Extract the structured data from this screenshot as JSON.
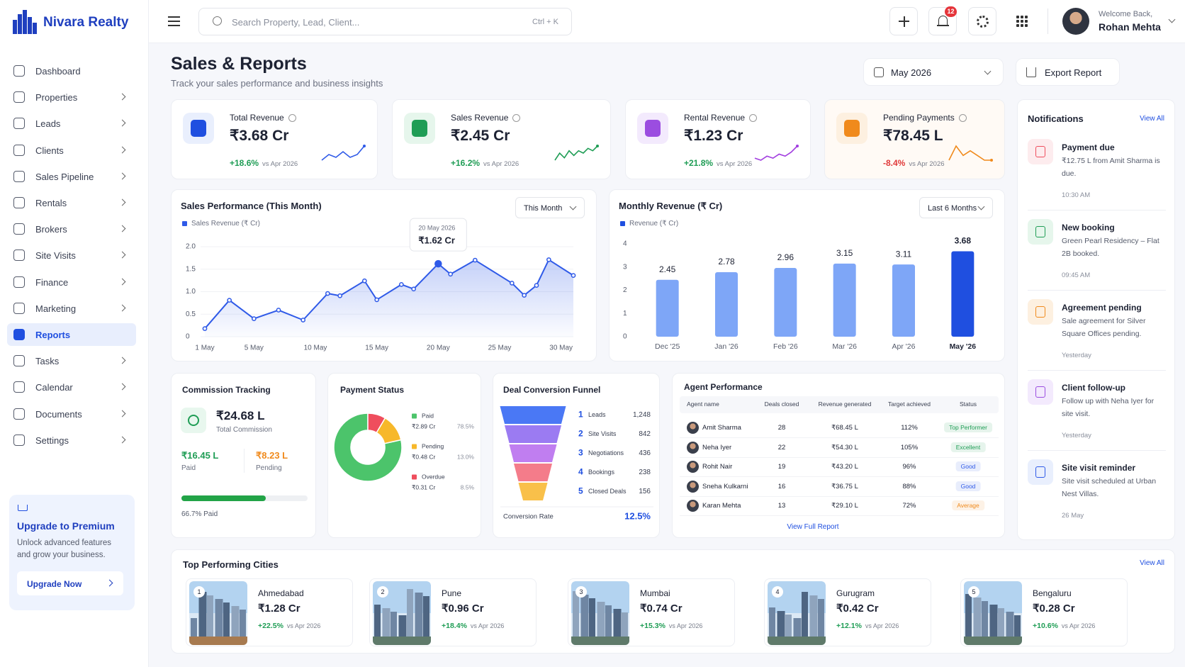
{
  "brand": "Nivara Realty",
  "search": {
    "placeholder": "Search Property, Lead, Client...",
    "shortcut": "Ctrl + K"
  },
  "notification_count": 12,
  "user": {
    "greeting": "Welcome Back,",
    "name": "Rohan Mehta"
  },
  "nav": [
    {
      "label": "Dashboard"
    },
    {
      "label": "Properties",
      "submenu": true
    },
    {
      "label": "Leads",
      "submenu": true
    },
    {
      "label": "Clients",
      "submenu": true
    },
    {
      "label": "Sales Pipeline",
      "submenu": true
    },
    {
      "label": "Rentals",
      "submenu": true
    },
    {
      "label": "Brokers",
      "submenu": true
    },
    {
      "label": "Site Visits",
      "submenu": true
    },
    {
      "label": "Finance",
      "submenu": true
    },
    {
      "label": "Marketing",
      "submenu": true
    },
    {
      "label": "Reports",
      "active": true
    },
    {
      "label": "Tasks",
      "submenu": true
    },
    {
      "label": "Calendar",
      "submenu": true
    },
    {
      "label": "Documents",
      "submenu": true
    },
    {
      "label": "Settings",
      "submenu": true
    }
  ],
  "upgrade": {
    "title": "Upgrade to Premium",
    "text": "Unlock advanced features and grow your business.",
    "button": "Upgrade Now"
  },
  "page": {
    "title": "Sales & Reports",
    "subtitle": "Track your sales performance and business insights",
    "period": "May 2026",
    "export": "Export Report"
  },
  "kpis": [
    {
      "label": "Total Revenue",
      "value": "₹3.68 Cr",
      "change": "+18.6%",
      "compare": "vs Apr 2026",
      "color": "#1f4fe0",
      "icon_bg": "#e9effd",
      "change_color": "#1f9d55",
      "trend_color": "#2f5ae8",
      "trend": [
        3,
        5,
        4,
        6,
        4,
        5,
        8
      ]
    },
    {
      "label": "Sales Revenue",
      "value": "₹2.45 Cr",
      "change": "+16.2%",
      "compare": "vs Apr 2026",
      "color": "#1f9d55",
      "icon_bg": "#e6f6ec",
      "change_color": "#1f9d55",
      "trend_color": "#1f9d55",
      "trend": [
        2,
        5,
        3,
        6,
        4,
        6,
        5,
        7,
        6,
        8
      ]
    },
    {
      "label": "Rental Revenue",
      "value": "₹1.23 Cr",
      "change": "+21.8%",
      "compare": "vs Apr 2026",
      "color": "#9b4de0",
      "icon_bg": "#f3eafd",
      "change_color": "#1f9d55",
      "trend_color": "#a23ee0",
      "trend": [
        3,
        2,
        4,
        3,
        5,
        4,
        6,
        9
      ]
    },
    {
      "label": "Pending Payments",
      "value": "₹78.45 L",
      "change": "-8.4%",
      "compare": "vs Apr 2026",
      "color": "#f08a1c",
      "icon_bg": "#fdf0e0",
      "change_color": "#e03a3a",
      "trend_color": "#f08a1c",
      "trend": [
        3,
        6,
        4,
        5,
        4,
        3,
        3
      ],
      "card_bg": "#fffaf5"
    }
  ],
  "sales_performance": {
    "type": "line",
    "title": "Sales Performance (This Month)",
    "filter": "This Month",
    "series": [
      {
        "name": "Sales Revenue (₹ Cr)",
        "color": "#2f5ae8",
        "x": [
          1,
          3,
          5,
          7,
          9,
          11,
          12,
          14,
          15,
          17,
          18,
          20,
          21,
          23,
          26,
          27,
          28,
          29,
          31
        ],
        "values": [
          0.18,
          0.81,
          0.4,
          0.59,
          0.37,
          0.96,
          0.91,
          1.24,
          0.82,
          1.16,
          1.06,
          1.62,
          1.39,
          1.7,
          1.19,
          0.92,
          1.14,
          1.71,
          1.36
        ]
      }
    ],
    "xlim": [
      1,
      31
    ],
    "xticks": [
      {
        "value": 1,
        "label": "1 May"
      },
      {
        "value": 5,
        "label": "5 May"
      },
      {
        "value": 10,
        "label": "10 May"
      },
      {
        "value": 15,
        "label": "15 May"
      },
      {
        "value": 20,
        "label": "20 May"
      },
      {
        "value": 25,
        "label": "25 May"
      },
      {
        "value": 30,
        "label": "30 May"
      }
    ],
    "ylim": [
      0,
      2
    ],
    "yticks": [
      0,
      0.5,
      {
        "value": 1,
        "label": "1.0"
      },
      1.5,
      {
        "value": 2,
        "label": "2.0"
      }
    ],
    "tooltip": {
      "index": 11,
      "date": "20 May 2026",
      "value_label": "₹1.62 Cr"
    }
  },
  "monthly_revenue": {
    "type": "bar",
    "title": "Monthly Revenue (₹ Cr)",
    "filter": "Last 6 Months",
    "categories": [
      "Dec '25",
      "Jan '26",
      "Feb '26",
      "Mar '26",
      "Apr '26",
      "May '26"
    ],
    "series": [
      {
        "name": "Revenue (₹ Cr)",
        "color": "#7ea6f7",
        "values": [
          2.45,
          2.78,
          2.96,
          3.15,
          3.11,
          3.68
        ]
      }
    ],
    "highlight": {
      "index": 5,
      "color": "#1f4fe0"
    },
    "ylim": [
      0,
      4
    ],
    "yticks": [
      0,
      1,
      2,
      3,
      4
    ]
  },
  "commission": {
    "title": "Commission Tracking",
    "total": "₹24.68 L",
    "total_label": "Total Commission",
    "paid": "₹16.45 L",
    "paid_label": "Paid",
    "pending": "₹8.23 L",
    "pending_label": "Pending",
    "progress": 66.7,
    "progress_label": "66.7% Paid"
  },
  "payment_status": {
    "type": "pie",
    "title": "Payment Status",
    "segments": [
      {
        "name": "Paid",
        "amount": "₹2.89 Cr",
        "value": 78.5,
        "value_label": "78.5%",
        "color": "#4cc46b"
      },
      {
        "name": "Pending",
        "amount": "₹0.48 Cr",
        "value": 13.0,
        "value_label": "13.0%",
        "color": "#f7b82a"
      },
      {
        "name": "Overdue",
        "amount": "₹0.31 Cr",
        "value": 8.5,
        "value_label": "8.5%",
        "color": "#ef4e5d"
      }
    ]
  },
  "funnel": {
    "title": "Deal Conversion Funnel",
    "stages": [
      {
        "rank": 1,
        "name": "Leads",
        "value": 1248,
        "value_label": "1,248",
        "color": "#4a78f5"
      },
      {
        "rank": 2,
        "name": "Site Visits",
        "value": 842,
        "color": "#9b7bf2"
      },
      {
        "rank": 3,
        "name": "Negotiations",
        "value": 436,
        "color": "#c07ef0"
      },
      {
        "rank": 4,
        "name": "Bookings",
        "value": 238,
        "color": "#f47c8a"
      },
      {
        "rank": 5,
        "name": "Closed Deals",
        "value": 156,
        "color": "#f9c04a"
      }
    ],
    "conversion": {
      "label": "Conversion Rate",
      "value": "12.5%"
    }
  },
  "agents": {
    "title": "Agent Performance",
    "columns": [
      "Agent name",
      "Deals closed",
      "Revenue generated",
      "Target achieved",
      "Status"
    ],
    "rows": [
      {
        "name": "Amit Sharma",
        "deals": 28,
        "revenue": "₹68.45 L",
        "target": "112%",
        "status": "Top Performer",
        "status_color": "#1f9d55"
      },
      {
        "name": "Neha Iyer",
        "deals": 22,
        "revenue": "₹54.30 L",
        "target": "105%",
        "status": "Excellent",
        "status_color": "#1f9d55"
      },
      {
        "name": "Rohit Nair",
        "deals": 19,
        "revenue": "₹43.20 L",
        "target": "96%",
        "status": "Good",
        "status_color": "#2f5ae8"
      },
      {
        "name": "Sneha Kulkarni",
        "deals": 16,
        "revenue": "₹36.75 L",
        "target": "88%",
        "status": "Good",
        "status_color": "#2f5ae8"
      },
      {
        "name": "Karan Mehta",
        "deals": 13,
        "revenue": "₹29.10 L",
        "target": "72%",
        "status": "Average",
        "status_color": "#f08a1c"
      }
    ],
    "link": "View Full Report"
  },
  "notifications": {
    "title": "Notifications",
    "view_all": "View All",
    "items": [
      {
        "title": "Payment due",
        "text": "₹12.75 L from Amit Sharma is due.",
        "time": "10:30 AM",
        "color": "#ef4e5d",
        "bg": "#fdecee"
      },
      {
        "title": "New booking",
        "text": "Green Pearl Residency – Flat 2B booked.",
        "time": "09:45 AM",
        "color": "#1f9d55",
        "bg": "#e6f6ec"
      },
      {
        "title": "Agreement pending",
        "text": "Sale agreement for Silver Square Offices pending.",
        "time": "Yesterday",
        "color": "#f08a1c",
        "bg": "#fdf0e0"
      },
      {
        "title": "Client follow-up",
        "text": "Follow up with Neha Iyer for site visit.",
        "time": "Yesterday",
        "color": "#9b4de0",
        "bg": "#f3eafd"
      },
      {
        "title": "Site visit reminder",
        "text": "Site visit scheduled at Urban Nest Villas.",
        "time": "26 May",
        "color": "#2f5ae8",
        "bg": "#e9effd"
      }
    ]
  },
  "cities": {
    "title": "Top Performing Cities",
    "view_all": "View All",
    "items": [
      {
        "rank": 1,
        "name": "Ahmedabad",
        "value": "₹1.28 Cr",
        "change": "+22.5%",
        "compare": "vs Apr 2026"
      },
      {
        "rank": 2,
        "name": "Pune",
        "value": "₹0.96 Cr",
        "change": "+18.4%",
        "compare": "vs Apr 2026"
      },
      {
        "rank": 3,
        "name": "Mumbai",
        "value": "₹0.74 Cr",
        "change": "+15.3%",
        "compare": "vs Apr 2026"
      },
      {
        "rank": 4,
        "name": "Gurugram",
        "value": "₹0.42 Cr",
        "change": "+12.1%",
        "compare": "vs Apr 2026"
      },
      {
        "rank": 5,
        "name": "Bengaluru",
        "value": "₹0.28 Cr",
        "change": "+10.6%",
        "compare": "vs Apr 2026"
      }
    ]
  }
}
